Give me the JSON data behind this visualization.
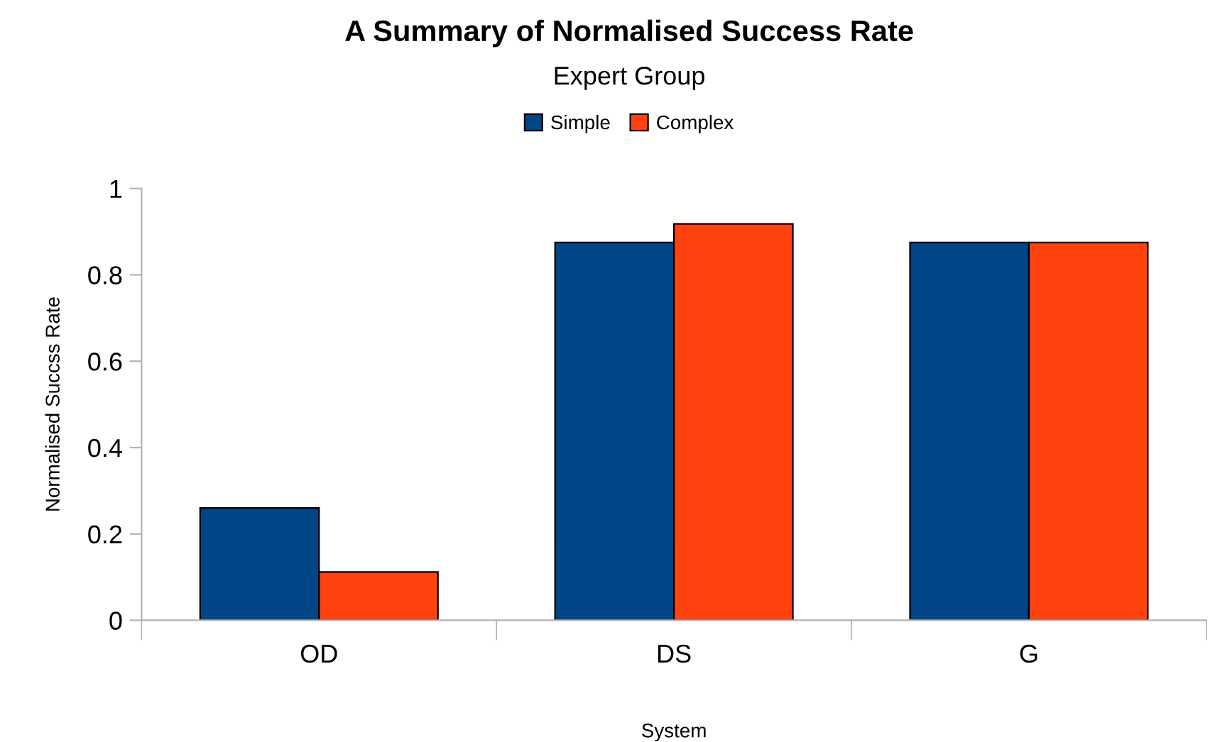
{
  "chart_data": {
    "type": "bar",
    "title": "A Summary of Normalised Success Rate",
    "subtitle": "Expert Group",
    "xlabel": "System",
    "ylabel": "Normalised Succss Rate",
    "categories": [
      "OD",
      "DS",
      "G"
    ],
    "series": [
      {
        "name": "Simple",
        "color": "#004586",
        "values": [
          0.26,
          0.875,
          0.875
        ]
      },
      {
        "name": "Complex",
        "color": "#ff420e",
        "values": [
          0.112,
          0.918,
          0.875
        ]
      }
    ],
    "ylim": [
      0,
      1
    ],
    "yticks": [
      0,
      0.2,
      0.4,
      0.6,
      0.8,
      1
    ],
    "grid": false,
    "legend": "top"
  }
}
